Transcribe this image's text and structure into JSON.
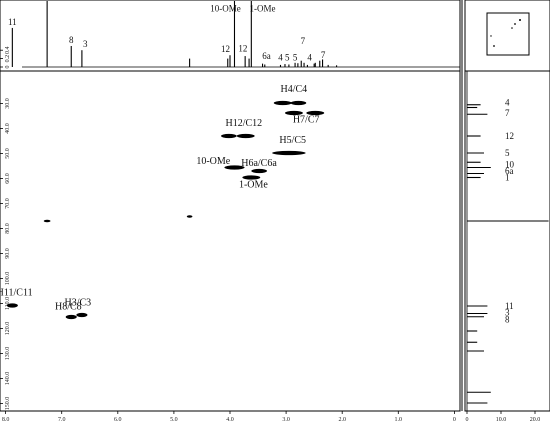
{
  "chart_data": {
    "type": "hsqc_2d_nmr",
    "x_axis": {
      "range": [
        8.1,
        -0.1
      ],
      "ticks": [
        {
          "v": 8.0,
          "label": "8.0"
        },
        {
          "v": 7.0,
          "label": "7.0"
        },
        {
          "v": 6.0,
          "label": "6.0"
        },
        {
          "v": 5.0,
          "label": "5.0"
        },
        {
          "v": 4.0,
          "label": "4.0"
        },
        {
          "v": 3.0,
          "label": "3.0"
        },
        {
          "v": 2.0,
          "label": "2.0"
        },
        {
          "v": 1.0,
          "label": "1.0"
        },
        {
          "v": 0.0,
          "label": "0"
        }
      ]
    },
    "y_axis": {
      "range": [
        17,
        153
      ],
      "ticks": [
        {
          "v": 30,
          "label": "30.0"
        },
        {
          "v": 40,
          "label": "40.0"
        },
        {
          "v": 50,
          "label": "50.0"
        },
        {
          "v": 60,
          "label": "60.0"
        },
        {
          "v": 70,
          "label": "70.0"
        },
        {
          "v": 80,
          "label": "80.0"
        },
        {
          "v": 90,
          "label": "90.0"
        },
        {
          "v": 100,
          "label": "100.0"
        },
        {
          "v": 110,
          "label": "110.0"
        },
        {
          "v": 120,
          "label": "120.0"
        },
        {
          "v": 130,
          "label": "130.0"
        },
        {
          "v": 140,
          "label": "140.0"
        },
        {
          "v": 150,
          "label": "150.0"
        }
      ]
    },
    "top_projection": {
      "y_ticks": [
        {
          "v": 0.4,
          "label": "0.4"
        },
        {
          "v": 0.2,
          "label": "0.2"
        },
        {
          "v": 0.0,
          "label": "0"
        }
      ],
      "peaks": [
        {
          "ppm": 7.88,
          "h": 0.93
        },
        {
          "ppm": 7.26,
          "h": 1.6
        },
        {
          "ppm": 6.83,
          "h": 0.5
        },
        {
          "ppm": 6.64,
          "h": 0.4
        },
        {
          "ppm": 4.72,
          "h": 0.2
        },
        {
          "ppm": 4.04,
          "h": 0.2
        },
        {
          "ppm": 4.0,
          "h": 0.28
        },
        {
          "ppm": 3.92,
          "h": 1.6
        },
        {
          "ppm": 3.73,
          "h": 0.26
        },
        {
          "ppm": 3.66,
          "h": 0.2
        },
        {
          "ppm": 3.62,
          "h": 1.6
        },
        {
          "ppm": 3.42,
          "h": 0.08
        },
        {
          "ppm": 3.38,
          "h": 0.06
        },
        {
          "ppm": 3.1,
          "h": 0.05
        },
        {
          "ppm": 3.02,
          "h": 0.07
        },
        {
          "ppm": 2.95,
          "h": 0.06
        },
        {
          "ppm": 2.84,
          "h": 0.1
        },
        {
          "ppm": 2.79,
          "h": 0.09
        },
        {
          "ppm": 2.73,
          "h": 0.15
        },
        {
          "ppm": 2.68,
          "h": 0.1
        },
        {
          "ppm": 2.62,
          "h": 0.05
        },
        {
          "ppm": 2.5,
          "h": 0.08
        },
        {
          "ppm": 2.48,
          "h": 0.1
        },
        {
          "ppm": 2.4,
          "h": 0.15
        },
        {
          "ppm": 2.35,
          "h": 0.18
        },
        {
          "ppm": 2.25,
          "h": 0.05
        },
        {
          "ppm": 2.1,
          "h": 0.04
        }
      ],
      "labels": [
        {
          "text": "11",
          "ppm": 7.88,
          "h": 0.93
        },
        {
          "text": "8",
          "ppm": 6.83,
          "h": 0.5
        },
        {
          "text": "3",
          "ppm": 6.58,
          "h": 0.4
        },
        {
          "text": "10-OMe",
          "ppm": 4.08,
          "h": 1.25
        },
        {
          "text": "1-OMe",
          "ppm": 3.42,
          "h": 1.25
        },
        {
          "text": "12",
          "ppm": 4.08,
          "h": 0.28
        },
        {
          "text": "12",
          "ppm": 3.77,
          "h": 0.3
        },
        {
          "text": "6a",
          "ppm": 3.35,
          "h": 0.12
        },
        {
          "text": "4",
          "ppm": 3.1,
          "h": 0.08
        },
        {
          "text": "5",
          "ppm": 2.98,
          "h": 0.08
        },
        {
          "text": "5",
          "ppm": 2.84,
          "h": 0.08
        },
        {
          "text": "7",
          "ppm": 2.7,
          "h": 0.48
        },
        {
          "text": "4",
          "ppm": 2.58,
          "h": 0.08
        },
        {
          "text": "7",
          "ppm": 2.34,
          "h": 0.14
        }
      ]
    },
    "side_projection": {
      "x_ticks": [
        {
          "v": 0,
          "label": "0"
        },
        {
          "v": 10,
          "label": "10.0"
        },
        {
          "v": 20,
          "label": "20.0"
        }
      ],
      "peaks": [
        {
          "c": 30.5,
          "h": 4
        },
        {
          "c": 31.6,
          "h": 3
        },
        {
          "c": 34.3,
          "h": 6
        },
        {
          "c": 43.0,
          "h": 4
        },
        {
          "c": 49.8,
          "h": 5
        },
        {
          "c": 53.5,
          "h": 4
        },
        {
          "c": 55.6,
          "h": 7
        },
        {
          "c": 58.0,
          "h": 5
        },
        {
          "c": 59.6,
          "h": 4
        },
        {
          "c": 77.0,
          "h": 24
        },
        {
          "c": 111.0,
          "h": 6
        },
        {
          "c": 114.0,
          "h": 6
        },
        {
          "c": 115.3,
          "h": 5
        },
        {
          "c": 121.0,
          "h": 3
        },
        {
          "c": 125.5,
          "h": 3
        },
        {
          "c": 129.0,
          "h": 5
        },
        {
          "c": 145.5,
          "h": 7
        },
        {
          "c": 149.8,
          "h": 6
        }
      ],
      "labels": [
        {
          "text": "4",
          "c": 29.5
        },
        {
          "text": "7",
          "c": 33.8
        },
        {
          "text": "12",
          "c": 43.0
        },
        {
          "text": "5",
          "c": 49.8
        },
        {
          "text": "10",
          "c": 54.3
        },
        {
          "text": "6a",
          "c": 57.0
        },
        {
          "text": "1",
          "c": 59.6
        },
        {
          "text": "11",
          "c": 111.0
        },
        {
          "text": "3",
          "c": 113.6
        },
        {
          "text": "8",
          "c": 116.3
        }
      ]
    },
    "cross_peaks": [
      {
        "label": "H4/C4",
        "h": 3.06,
        "c": 29.8,
        "w": 0.16
      },
      {
        "label": "H4/C4",
        "h": 2.78,
        "c": 29.8,
        "w": 0.14
      },
      {
        "label": "H7/C7",
        "h": 2.86,
        "c": 33.8,
        "w": 0.16
      },
      {
        "label": "H7/C7",
        "h": 2.48,
        "c": 33.8,
        "w": 0.16
      },
      {
        "label": "H12/C12",
        "h": 4.02,
        "c": 43.0,
        "w": 0.14
      },
      {
        "label": "H12/C12",
        "h": 3.72,
        "c": 43.0,
        "w": 0.16
      },
      {
        "label": "H5/C5",
        "h": 2.95,
        "c": 49.8,
        "w": 0.3
      },
      {
        "label": "10-OMe",
        "h": 3.92,
        "c": 55.6,
        "w": 0.18
      },
      {
        "label": "H6a/C6a",
        "h": 3.48,
        "c": 57.0,
        "w": 0.14
      },
      {
        "label": "1-OMe",
        "h": 3.62,
        "c": 59.6,
        "w": 0.16
      },
      {
        "label": "H11/C11",
        "h": 7.88,
        "c": 110.8,
        "w": 0.1
      },
      {
        "label": "H8/C8",
        "h": 6.83,
        "c": 115.4,
        "w": 0.1
      },
      {
        "label": "H3/C3",
        "h": 6.64,
        "c": 114.6,
        "w": 0.1
      },
      {
        "label": "",
        "h": 7.26,
        "c": 77.0,
        "w": 0.06
      },
      {
        "label": "",
        "h": 4.72,
        "c": 75.2,
        "w": 0.05
      }
    ],
    "annotations": [
      {
        "text": "H4/C4",
        "h": 3.1,
        "c": 25.4
      },
      {
        "text": "H7/C7",
        "h": 2.88,
        "c": 37.6
      },
      {
        "text": "H12/C12",
        "h": 4.08,
        "c": 39.0
      },
      {
        "text": "H5/C5",
        "h": 3.12,
        "c": 45.8
      },
      {
        "text": "10-OMe",
        "h": 4.6,
        "c": 54.2
      },
      {
        "text": "H6a/C6a",
        "h": 3.8,
        "c": 55.0
      },
      {
        "text": "1-OMe",
        "h": 3.84,
        "c": 63.6
      },
      {
        "text": "H11/C11",
        "h": 8.16,
        "c": 106.8
      },
      {
        "text": "H8/C8",
        "h": 7.12,
        "c": 112.4
      },
      {
        "text": "H3/C3",
        "h": 6.95,
        "c": 110.8
      }
    ]
  }
}
